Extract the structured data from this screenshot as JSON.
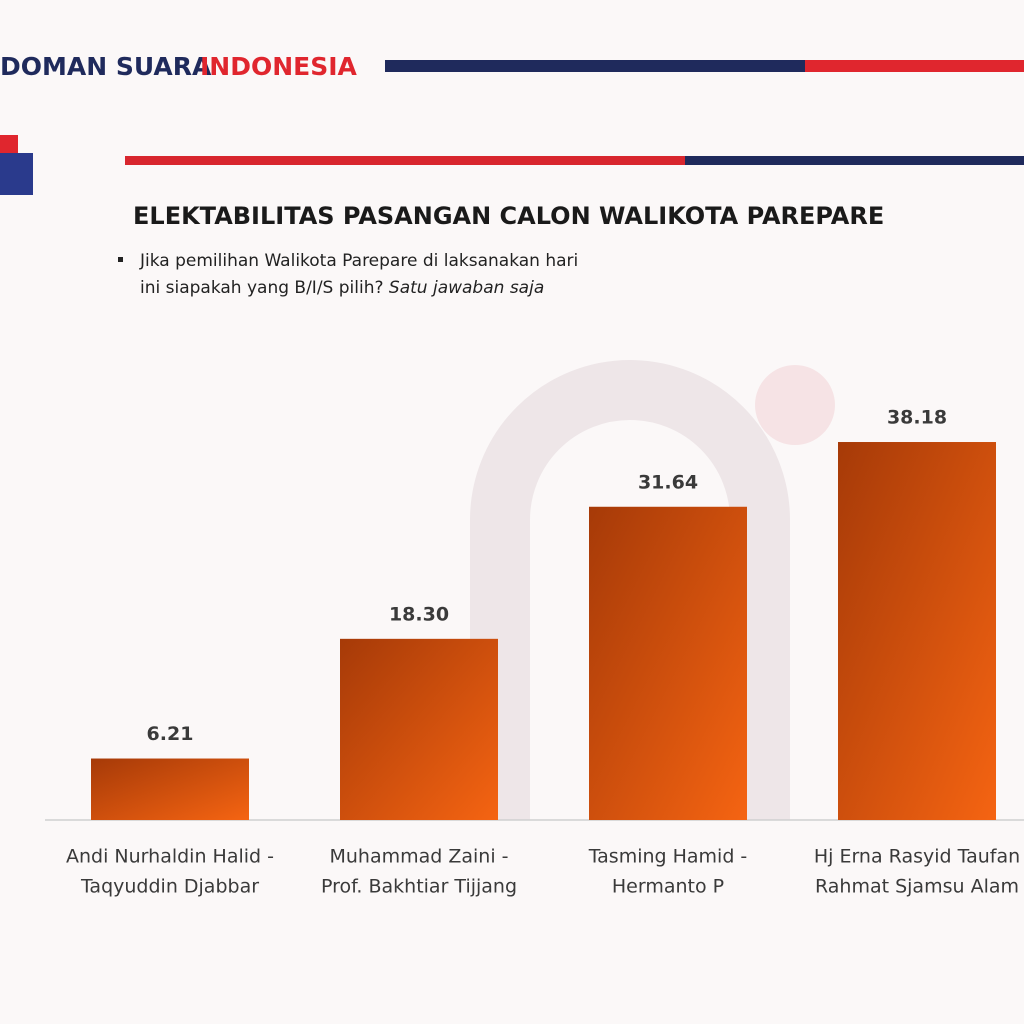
{
  "header": {
    "brand_navy": "DOMAN SUARA",
    "brand_red": "INDONESIA"
  },
  "chart_data": {
    "type": "bar",
    "title": "ELEKTABILITAS PASANGAN CALON WALIKOTA PAREPARE",
    "subtitle": [
      "Jika pemilihan Walikota Parepare di laksanakan hari",
      "ini siapakah yang B/I/S pilih?",
      "Satu jawaban saja"
    ],
    "categories": [
      [
        "Andi Nurhaldin Halid -",
        "Taqyuddin Djabbar"
      ],
      [
        "Muhammad Zaini -",
        "Prof. Bakhtiar Tijjang"
      ],
      [
        "Tasming Hamid -",
        "Hermanto P"
      ],
      [
        "Hj Erna Rasyid Taufan",
        "Rahmat Sjamsu Alam"
      ]
    ],
    "values": [
      6.21,
      18.3,
      31.64,
      38.18
    ],
    "value_labels": [
      "6.21",
      "18.30",
      "31.64",
      "38.18"
    ],
    "color": "#f56412"
  }
}
